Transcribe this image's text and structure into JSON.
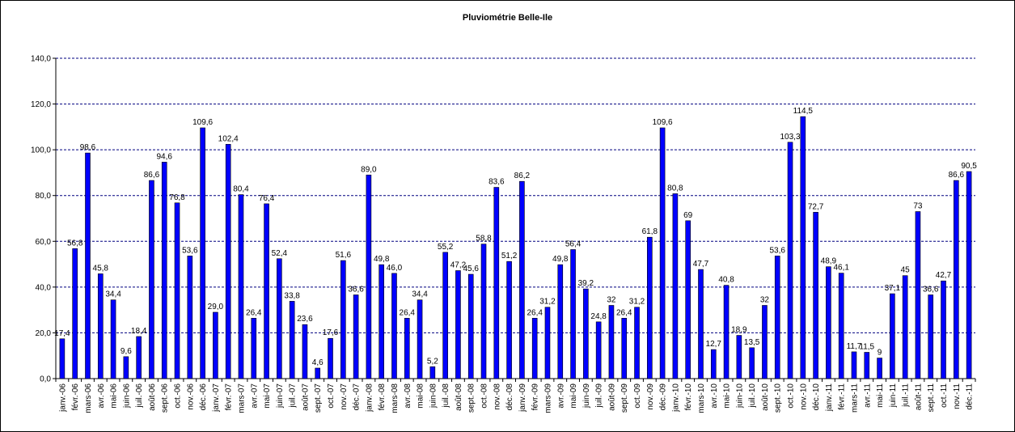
{
  "chart_data": {
    "type": "bar",
    "title": "Pluviométrie Belle-Ile",
    "xlabel": "",
    "ylabel": "",
    "ylim": [
      0,
      140
    ],
    "yticks": [
      "0,0",
      "20,0",
      "40,0",
      "60,0",
      "80,0",
      "100,0",
      "120,0",
      "140,0"
    ],
    "ytick_values": [
      0,
      20,
      40,
      60,
      80,
      100,
      120,
      140
    ],
    "grid": true,
    "legend": "none",
    "bar_color": "#0000ff",
    "grid_color": "#000080",
    "categories": [
      "janv.-06",
      "févr.-06",
      "mars-06",
      "avr.-06",
      "mai-06",
      "juin-06",
      "juil.-06",
      "août-06",
      "sept.-06",
      "oct.-06",
      "nov.-06",
      "déc.-06",
      "janv.-07",
      "févr.-07",
      "mars-07",
      "avr.-07",
      "mai-07",
      "juin-07",
      "juil.-07",
      "août-07",
      "sept.-07",
      "oct.-07",
      "nov.-07",
      "déc.-07",
      "janv.-08",
      "févr.-08",
      "mars-08",
      "avr.-08",
      "mai-08",
      "juin-08",
      "juil.-08",
      "août-08",
      "sept.-08",
      "oct.-08",
      "nov.-08",
      "déc.-08",
      "janv.-09",
      "févr.-09",
      "mars-09",
      "avr.-09",
      "mai-09",
      "juin-09",
      "juil.-09",
      "août-09",
      "sept.-09",
      "oct.-09",
      "nov.-09",
      "déc.-09",
      "janv.-10",
      "févr.-10",
      "mars-10",
      "avr.-10",
      "mai-10",
      "juin-10",
      "juil.-10",
      "août-10",
      "sept.-10",
      "oct.-10",
      "nov.-10",
      "déc.-10",
      "janv.-11",
      "févr.-11",
      "mars-11",
      "avr.-11",
      "mai-11",
      "juin-11",
      "juil.-11",
      "août-11",
      "sept.-11",
      "oct.-11",
      "nov.-11",
      "déc.-11"
    ],
    "values": [
      17.4,
      56.8,
      98.6,
      45.8,
      34.4,
      9.6,
      18.4,
      86.6,
      94.6,
      76.8,
      53.6,
      109.6,
      29.0,
      102.4,
      80.4,
      26.4,
      76.4,
      52.4,
      33.8,
      23.6,
      4.6,
      17.6,
      51.6,
      36.6,
      89.0,
      49.8,
      46.0,
      26.4,
      34.4,
      5.2,
      55.2,
      47.2,
      45.6,
      58.8,
      83.6,
      51.2,
      86.2,
      26.4,
      31.2,
      49.8,
      56.4,
      39.2,
      24.8,
      32,
      26.4,
      31.2,
      61.8,
      109.6,
      80.8,
      69,
      47.7,
      12.7,
      40.8,
      18.9,
      13.5,
      32,
      53.6,
      103.3,
      114.5,
      72.7,
      48.9,
      46.1,
      11.7,
      11.5,
      9,
      37.1,
      45,
      73,
      36.6,
      42.7,
      86.6,
      90.5
    ],
    "data_labels": [
      "17,4",
      "56,8",
      "98,6",
      "45,8",
      "34,4",
      "9,6",
      "18,4",
      "86,6",
      "94,6",
      "76,8",
      "53,6",
      "109,6",
      "29,0",
      "102,4",
      "80,4",
      "26,4",
      "76,4",
      "52,4",
      "33,8",
      "23,6",
      "4,6",
      "17,6",
      "51,6",
      "36,6",
      "89,0",
      "49,8",
      "46,0",
      "26,4",
      "34,4",
      "5,2",
      "55,2",
      "47,2",
      "45,6",
      "58,8",
      "83,6",
      "51,2",
      "86,2",
      "26,4",
      "31,2",
      "49,8",
      "56,4",
      "39,2",
      "24,8",
      "32",
      "26,4",
      "31,2",
      "61,8",
      "109,6",
      "80,8",
      "69",
      "47,7",
      "12,7",
      "40,8",
      "18,9",
      "13,5",
      "32",
      "53,6",
      "103,3",
      "114,5",
      "72,7",
      "48,9",
      "46,1",
      "11,7",
      "11,5",
      "9",
      "37,1",
      "45",
      "73",
      "36,6",
      "42,7",
      "86,6",
      "90,5"
    ]
  }
}
